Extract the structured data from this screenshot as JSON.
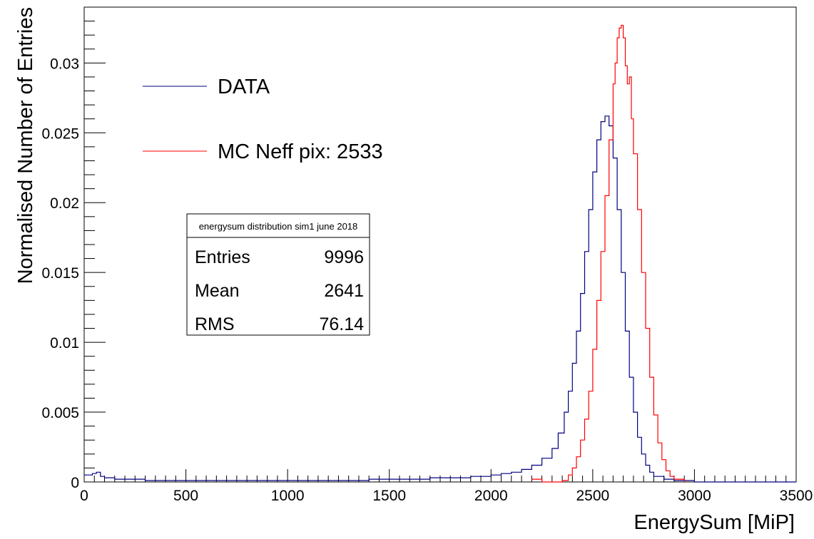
{
  "chart_data": {
    "type": "histogram",
    "xlabel": "EnergySum [MiP]",
    "ylabel": "Normalised Number of Entries",
    "xlim": [
      0,
      3500
    ],
    "ylim": [
      0,
      0.034
    ],
    "x_ticks": [
      "0",
      "500",
      "1000",
      "1500",
      "2000",
      "2500",
      "3000",
      "3500"
    ],
    "y_ticks": [
      "0",
      "0.005",
      "0.01",
      "0.015",
      "0.02",
      "0.025",
      "0.03"
    ],
    "grid": false,
    "legend_position": "top-left",
    "series": [
      {
        "name": "DATA",
        "color": "#00007f",
        "x": [
          0,
          20,
          40,
          60,
          80,
          100,
          150,
          200,
          300,
          400,
          500,
          600,
          700,
          800,
          900,
          1000,
          1100,
          1200,
          1300,
          1400,
          1500,
          1600,
          1700,
          1800,
          1900,
          2000,
          2050,
          2100,
          2150,
          2200,
          2250,
          2300,
          2330,
          2360,
          2380,
          2400,
          2420,
          2440,
          2460,
          2480,
          2500,
          2520,
          2540,
          2560,
          2580,
          2600,
          2620,
          2640,
          2660,
          2680,
          2700,
          2720,
          2740,
          2760,
          2780,
          2800,
          2850,
          2900,
          3000,
          3100,
          3200,
          3300,
          3400,
          3500
        ],
        "values": [
          0.0005,
          0.0005,
          0.0006,
          0.0007,
          0.0004,
          0.0003,
          0.0002,
          0.0002,
          0.0001,
          0.0001,
          0.0001,
          0.0001,
          0.0001,
          0.0001,
          0.0001,
          0.0001,
          0.0001,
          0.0001,
          0.0001,
          0.0002,
          0.0002,
          0.0002,
          0.0003,
          0.0003,
          0.0004,
          0.0005,
          0.0006,
          0.0007,
          0.0009,
          0.0012,
          0.0017,
          0.0024,
          0.0035,
          0.005,
          0.0065,
          0.0085,
          0.0108,
          0.0135,
          0.0165,
          0.0195,
          0.0222,
          0.0245,
          0.0258,
          0.0262,
          0.0255,
          0.0232,
          0.0195,
          0.015,
          0.0108,
          0.0075,
          0.005,
          0.0032,
          0.002,
          0.0012,
          0.0007,
          0.0004,
          0.0002,
          0.0001,
          0.0,
          0.0,
          0.0,
          0.0,
          0.0,
          0.0
        ]
      },
      {
        "name": "MC Neff pix: 2533",
        "color": "#ff0000",
        "x": [
          2200,
          2250,
          2300,
          2350,
          2380,
          2400,
          2420,
          2440,
          2460,
          2480,
          2500,
          2520,
          2540,
          2560,
          2580,
          2600,
          2610,
          2620,
          2630,
          2640,
          2650,
          2660,
          2670,
          2680,
          2690,
          2700,
          2720,
          2740,
          2760,
          2780,
          2800,
          2820,
          2840,
          2860,
          2880,
          2900,
          2950
        ],
        "values": [
          0.0002,
          0.0,
          0.0,
          0.0001,
          0.0005,
          0.001,
          0.0018,
          0.003,
          0.0045,
          0.0065,
          0.0095,
          0.013,
          0.0165,
          0.0205,
          0.0245,
          0.0285,
          0.03,
          0.0318,
          0.0325,
          0.0327,
          0.0318,
          0.0298,
          0.0285,
          0.029,
          0.026,
          0.0235,
          0.0195,
          0.015,
          0.011,
          0.0075,
          0.0048,
          0.0028,
          0.0016,
          0.0008,
          0.0004,
          0.0002,
          0.0
        ]
      }
    ]
  },
  "stats_box": {
    "title": "energysum distribution sim1 june 2018",
    "rows": [
      {
        "label": "Entries",
        "value": "9996"
      },
      {
        "label": "Mean",
        "value": "2641"
      },
      {
        "label": "RMS",
        "value": "76.14"
      }
    ]
  }
}
